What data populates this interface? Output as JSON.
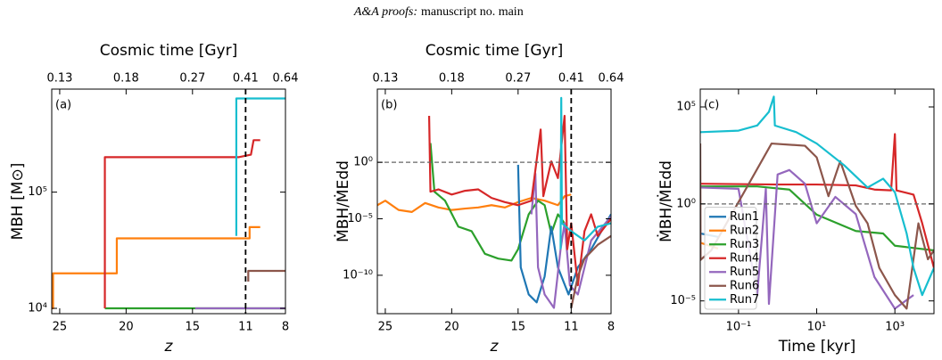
{
  "header": {
    "journal": "A&A proofs:",
    "manuscript": "manuscript no. main"
  },
  "chart_data": [
    {
      "type": "line",
      "annotation": "(a)",
      "x2label": "Cosmic time [Gyr]",
      "xlabel": "z",
      "ylabel": "MBH [M⊙]",
      "xlim": [
        25.6,
        8
      ],
      "xticks": [
        25,
        20,
        15,
        11,
        8
      ],
      "x2ticks": [
        {
          "value": 25,
          "label": "0.13"
        },
        {
          "value": 20,
          "label": "0.18"
        },
        {
          "value": 15,
          "label": "0.27"
        },
        {
          "value": 11,
          "label": "0.41"
        },
        {
          "value": 8,
          "label": "0.64"
        }
      ],
      "ylim": [
        9000,
        770000
      ],
      "ylog": true,
      "yticks": [
        {
          "value": 10000,
          "label": "10⁴"
        },
        {
          "value": 100000,
          "label": "10⁵"
        }
      ],
      "vline": 11,
      "series": [
        {
          "color": "#ff7f0e",
          "x": [
            25.6,
            25.5,
            25.5,
            20.7,
            20.7,
            10.7,
            10.7,
            9.9
          ],
          "values": [
            10000,
            10000,
            20000,
            20000,
            40000,
            40000,
            50000,
            50000
          ]
        },
        {
          "color": "#2ca02c",
          "x": [
            21.6,
            8
          ],
          "values": [
            10000,
            10000
          ]
        },
        {
          "color": "#d62728",
          "x": [
            21.6,
            21.6,
            11.5,
            10.6,
            10.4,
            9.9
          ],
          "values": [
            10000,
            200000,
            200000,
            210000,
            280000,
            280000
          ]
        },
        {
          "color": "#9467bd",
          "x": [
            14.8,
            8
          ],
          "values": [
            10000,
            10000
          ]
        },
        {
          "color": "#8c564b",
          "x": [
            10.8,
            10.8,
            8
          ],
          "values": [
            17000,
            21000,
            21000
          ]
        },
        {
          "color": "#17becf",
          "x": [
            11.7,
            11.7,
            8
          ],
          "values": [
            42000,
            640000,
            640000
          ]
        }
      ]
    },
    {
      "type": "line",
      "annotation": "(b)",
      "x2label": "Cosmic time [Gyr]",
      "xlabel": "z",
      "ylabel": "ṀBH/ṀEdd",
      "xlim": [
        25.6,
        8
      ],
      "xticks": [
        25,
        20,
        15,
        11,
        8
      ],
      "x2ticks": [
        {
          "value": 25,
          "label": "0.13"
        },
        {
          "value": 20,
          "label": "0.18"
        },
        {
          "value": 15,
          "label": "0.27"
        },
        {
          "value": 11,
          "label": "0.41"
        },
        {
          "value": 8,
          "label": "0.64"
        }
      ],
      "ylim": [
        4e-14,
        3000000.0
      ],
      "ylog": true,
      "yticks": [
        {
          "value": 1,
          "label": "10⁰"
        },
        {
          "value": 1e-05,
          "label": "10⁻⁵"
        },
        {
          "value": 1e-10,
          "label": "10⁻¹⁰"
        }
      ],
      "vline": 11,
      "hline": 1,
      "series": [
        {
          "color": "#ff7f0e",
          "x": [
            25.6,
            25,
            24,
            23,
            22,
            21,
            20,
            19,
            18,
            17,
            16,
            15,
            14,
            13,
            12,
            11.5,
            11
          ],
          "values": [
            0.00016,
            0.0004,
            6e-05,
            4e-05,
            0.00025,
            0.0001,
            6e-05,
            8e-05,
            0.0001,
            0.00016,
            0.0001,
            0.0003,
            0.0007,
            0.0004,
            0.00016,
            0.001,
            0.0014
          ]
        },
        {
          "color": "#2ca02c",
          "x": [
            21.6,
            21.3,
            20.5,
            19.5,
            18.5,
            17.5,
            16.5,
            15.5,
            15,
            14.2,
            13.5,
            13,
            12.5,
            12,
            11.5
          ],
          "values": [
            50,
            0.0025,
            0.0004,
            2e-06,
            8e-07,
            8e-09,
            3e-09,
            2e-09,
            2e-08,
            2.5e-05,
            0.0004,
            0.00016,
            5e-07,
            2.5e-05,
            4e-06
          ]
        },
        {
          "color": "#1f77b4",
          "x": [
            15,
            14.8,
            14.2,
            13.6,
            13,
            12.5,
            12,
            11.2,
            10.5,
            9.5,
            8
          ],
          "values": [
            0.6,
            5e-10,
            2e-12,
            4e-13,
            8e-11,
            2e-06,
            5e-10,
            2e-12,
            5e-10,
            2e-08,
            2.5e-05
          ]
        },
        {
          "color": "#9467bd",
          "x": [
            14,
            13.7,
            13.5,
            13,
            12.3,
            11.8,
            11.5,
            11.1,
            10.5,
            9.5,
            8
          ],
          "values": [
            2.5e-05,
            0.1,
            5e-10,
            2e-12,
            1.3e-13,
            2e-08,
            4e-06,
            1.3e-11,
            2e-12,
            1.2e-07,
            1.6e-05
          ]
        },
        {
          "color": "#d62728",
          "x": [
            21.7,
            21.6,
            21,
            20,
            19,
            18,
            17,
            16,
            15,
            14,
            13.3,
            13.1,
            12.5,
            12,
            11.5,
            11.3,
            11,
            10.5,
            10,
            9.5,
            9,
            8
          ],
          "values": [
            13000,
            0.0025,
            0.004,
            0.0014,
            0.003,
            0.004,
            0.0007,
            0.0003,
            0.00016,
            0.0004,
            800,
            0.001,
            1.2,
            0.04,
            13000,
            2e-08,
            4e-06,
            1.3e-11,
            8e-07,
            2.5e-05,
            3e-07,
            1e-05
          ]
        },
        {
          "color": "#17becf",
          "x": [
            11.8,
            11.75,
            11.7,
            11,
            10,
            9,
            8
          ],
          "values": [
            2e-08,
            500000,
            4e-06,
            8e-07,
            1.2e-07,
            2e-06,
            4e-06
          ]
        },
        {
          "color": "#8c564b",
          "x": [
            11,
            10.5,
            10,
            9,
            8
          ],
          "values": [
            1.3e-13,
            8e-11,
            3e-09,
            5e-08,
            3e-07
          ]
        }
      ]
    },
    {
      "type": "line",
      "annotation": "(c)",
      "xlabel": "Time [kyr]",
      "ylabel": "ṀBH/ṀEdd",
      "xlim": [
        0.0105,
        10000
      ],
      "xlog": true,
      "xticks": [
        {
          "value": 0.1,
          "label": "10⁻¹"
        },
        {
          "value": 10,
          "label": "10¹"
        },
        {
          "value": 1000,
          "label": "10³"
        }
      ],
      "ylim": [
        2.2e-06,
        830000
      ],
      "ylog": true,
      "yticks": [
        {
          "value": 1e-05,
          "label": "10⁻⁵"
        },
        {
          "value": 1,
          "label": "10⁰"
        },
        {
          "value": 100000,
          "label": "10⁵"
        }
      ],
      "hline": 1,
      "legend": "lower left",
      "series": [
        {
          "name": "Run1",
          "color": "#1f77b4",
          "x": [
            0.0105,
            0.03
          ],
          "values": [
            0.03,
            0.02
          ]
        },
        {
          "name": "Run2",
          "color": "#ff7f0e",
          "x": [
            0.0105,
            0.03
          ],
          "values": [
            0.01,
            0.005
          ]
        },
        {
          "name": "Run3",
          "color": "#2ca02c",
          "x": [
            0.0105,
            0.3,
            2,
            10,
            100,
            500,
            1000,
            10000
          ],
          "values": [
            8,
            8,
            5.5,
            0.28,
            0.04,
            0.03,
            0.007,
            0.004
          ]
        },
        {
          "name": "Run4",
          "color": "#d62728",
          "x": [
            0.0105,
            1,
            10,
            100,
            300,
            800,
            1000,
            1100,
            3000,
            5000,
            10000
          ],
          "values": [
            11,
            10,
            10,
            9,
            5.5,
            5,
            4000,
            5,
            3,
            0.1,
            0.0005
          ]
        },
        {
          "name": "Run5",
          "color": "#9467bd",
          "x": [
            0.0105,
            0.1,
            0.3,
            0.5,
            0.6,
            1,
            2,
            5,
            10,
            30,
            100,
            300,
            1000,
            3000
          ],
          "values": [
            7,
            6,
            2e-05,
            6,
            7e-06,
            33,
            56,
            11,
            0.1,
            2.3,
            0.3,
            0.00017,
            4e-06,
            2e-05
          ]
        },
        {
          "name": "Run6",
          "color": "#8c564b",
          "x": [
            0.0105,
            0.0107,
            0.02,
            0.7,
            5,
            10,
            20,
            40,
            100,
            200,
            400,
            1000,
            2000,
            4000,
            7000,
            10000
          ],
          "values": [
            1300,
            0.0013,
            0.004,
            1300,
            1000,
            250,
            2.5,
            160,
            0.8,
            0.1,
            0.0005,
            2e-05,
            4e-06,
            0.1,
            0.0014,
            0.004
          ]
        },
        {
          "name": "Run7",
          "color": "#17becf",
          "x": [
            0.0105,
            0.1,
            0.3,
            0.6,
            0.8,
            0.85,
            3,
            10,
            50,
            200,
            500,
            1000,
            2000,
            3000,
            5000,
            10000
          ],
          "values": [
            5000,
            6000,
            11000,
            56000,
            340000,
            11000,
            5000,
            1300,
            100,
            7,
            20,
            4,
            0.03,
            0.0005,
            2e-05,
            0.0005
          ]
        }
      ]
    }
  ]
}
